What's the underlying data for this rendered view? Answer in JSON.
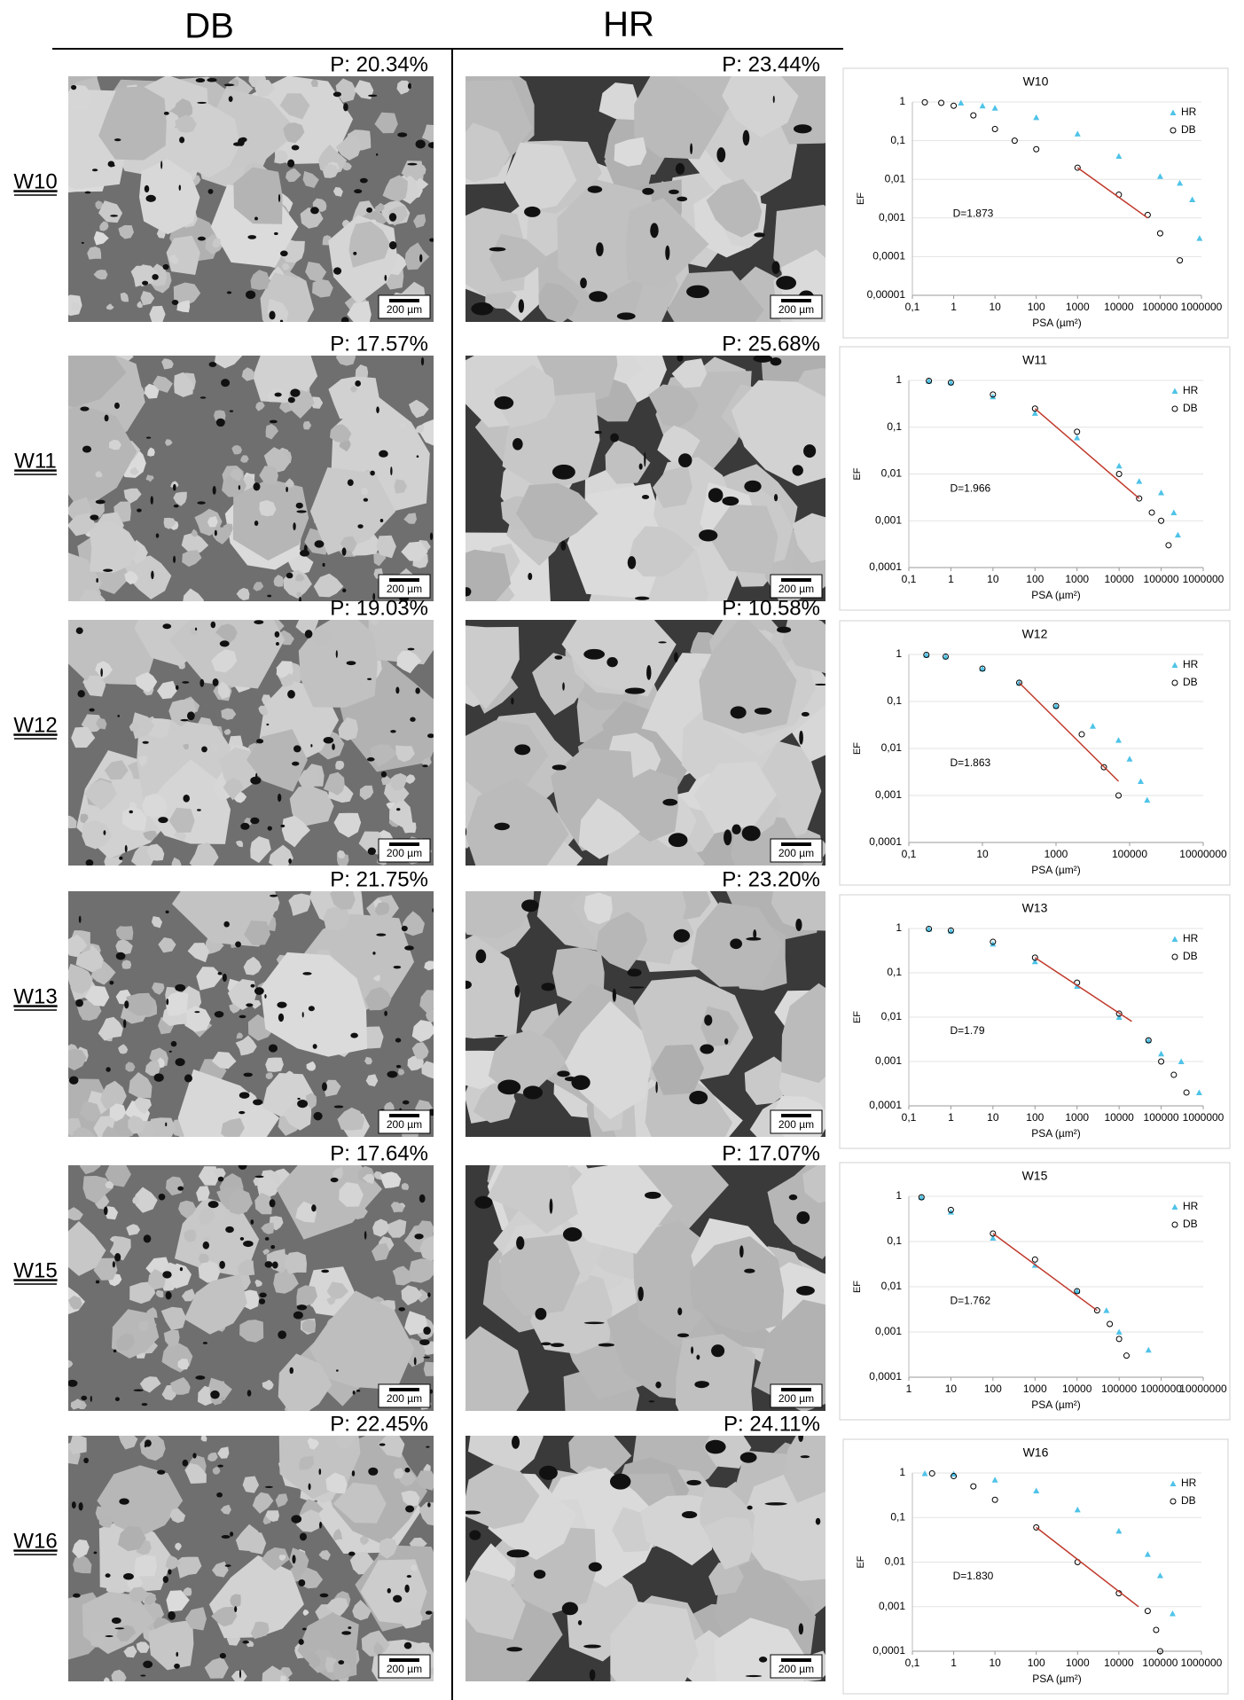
{
  "header": {
    "columns": [
      "DB",
      "HR"
    ]
  },
  "scale_bar": "200 µm",
  "rows": [
    {
      "label": "W10",
      "db": "P:  20.34%",
      "hr": "P: 23.44%"
    },
    {
      "label": "W11",
      "db": "P: 17.57%",
      "hr": "P: 25.68%"
    },
    {
      "label": "W12",
      "db": "P: 19.03%",
      "hr": "P: 10.58%"
    },
    {
      "label": "W13",
      "db": "P: 21.75%",
      "hr": "P: 23.20%"
    },
    {
      "label": "W15",
      "db": "P: 17.64%",
      "hr": "P: 17.07%"
    },
    {
      "label": "W16",
      "db": "P: 22.45%",
      "hr": "P: 24.11%"
    }
  ],
  "chart_data": [
    {
      "type": "scatter",
      "title": "W10",
      "xlabel": "PSA (µm²)",
      "ylabel": "EF",
      "xscale": "log",
      "yscale": "log",
      "grid": true,
      "legend": "upper right",
      "annotation": "D=1.873",
      "xlim": [
        0.1,
        1000000
      ],
      "ylim": [
        1e-05,
        1
      ],
      "xticks": [
        {
          "value": 0.1,
          "label": "0,1"
        },
        1,
        10,
        100,
        1000,
        10000,
        100000,
        1000000
      ],
      "yticks": [
        {
          "value": 1e-05,
          "label": "0,00001"
        },
        {
          "value": 0.0001,
          "label": "0,0001"
        },
        {
          "value": 0.001,
          "label": "0,001"
        },
        {
          "value": 0.01,
          "label": "0,01"
        },
        {
          "value": 0.1,
          "label": "0,1"
        },
        1
      ],
      "series": [
        {
          "name": "HR",
          "color": "#4fc3e8",
          "marker": "triangle",
          "x": [
            1.5,
            5,
            10,
            100,
            1000,
            10000,
            100000,
            300000,
            600000,
            900000
          ],
          "values": [
            0.95,
            0.8,
            0.7,
            0.4,
            0.15,
            0.04,
            0.012,
            0.008,
            0.003,
            0.0003
          ]
        },
        {
          "name": "DB",
          "color": "#000000",
          "marker": "circle",
          "x": [
            0.2,
            0.5,
            1,
            3,
            10,
            30,
            100,
            1000,
            10000,
            50000,
            100000,
            300000
          ],
          "values": [
            0.98,
            0.95,
            0.8,
            0.45,
            0.2,
            0.1,
            0.06,
            0.02,
            0.004,
            0.0012,
            0.0004,
            8e-05
          ]
        }
      ],
      "fit": {
        "color": "#c0392b",
        "x": [
          1000,
          50000
        ],
        "values": [
          0.02,
          0.001
        ]
      }
    },
    {
      "type": "scatter",
      "title": "W11",
      "xlabel": "PSA (µm²)",
      "ylabel": "EF",
      "xscale": "log",
      "yscale": "log",
      "grid": true,
      "legend": "upper right",
      "annotation": "D=1.966",
      "xlim": [
        0.1,
        1000000
      ],
      "ylim": [
        0.0001,
        1
      ],
      "xticks": [
        {
          "value": 0.1,
          "label": "0,1"
        },
        1,
        10,
        100,
        1000,
        10000,
        100000,
        1000000
      ],
      "yticks": [
        {
          "value": 0.0001,
          "label": "0,0001"
        },
        {
          "value": 0.001,
          "label": "0,001"
        },
        {
          "value": 0.01,
          "label": "0,01"
        },
        {
          "value": 0.1,
          "label": "0,1"
        },
        1
      ],
      "series": [
        {
          "name": "HR",
          "color": "#4fc3e8",
          "marker": "triangle",
          "x": [
            0.3,
            1,
            10,
            100,
            1000,
            10000,
            30000,
            100000,
            200000,
            250000
          ],
          "values": [
            0.98,
            0.9,
            0.45,
            0.2,
            0.06,
            0.015,
            0.007,
            0.004,
            0.0015,
            0.0005
          ]
        },
        {
          "name": "DB",
          "color": "#000000",
          "marker": "circle",
          "x": [
            0.3,
            1,
            10,
            100,
            1000,
            10000,
            30000,
            60000,
            100000,
            150000
          ],
          "values": [
            0.98,
            0.9,
            0.5,
            0.25,
            0.08,
            0.01,
            0.003,
            0.0015,
            0.001,
            0.0003
          ]
        }
      ],
      "fit": {
        "color": "#c0392b",
        "x": [
          100,
          30000
        ],
        "values": [
          0.25,
          0.003
        ]
      }
    },
    {
      "type": "scatter",
      "title": "W12",
      "xlabel": "PSA (µm²)",
      "ylabel": "EF",
      "xscale": "log",
      "yscale": "log",
      "grid": true,
      "legend": "upper right",
      "annotation": "D=1.863",
      "xlim": [
        0.1,
        10000000
      ],
      "ylim": [
        0.0001,
        1
      ],
      "xticks": [
        {
          "value": 0.1,
          "label": "0,1"
        },
        10,
        1000,
        100000,
        10000000
      ],
      "yticks": [
        {
          "value": 0.0001,
          "label": "0,0001"
        },
        {
          "value": 0.001,
          "label": "0,001"
        },
        {
          "value": 0.01,
          "label": "0,01"
        },
        {
          "value": 0.1,
          "label": "0,1"
        },
        1
      ],
      "series": [
        {
          "name": "HR",
          "color": "#4fc3e8",
          "marker": "triangle",
          "x": [
            0.3,
            1,
            10,
            100,
            1000,
            10000,
            50000,
            100000,
            200000,
            300000
          ],
          "values": [
            0.98,
            0.9,
            0.5,
            0.25,
            0.08,
            0.03,
            0.015,
            0.006,
            0.002,
            0.0008
          ]
        },
        {
          "name": "DB",
          "color": "#000000",
          "marker": "circle",
          "x": [
            0.3,
            1,
            10,
            100,
            1000,
            5000,
            20000,
            50000
          ],
          "values": [
            0.98,
            0.9,
            0.5,
            0.25,
            0.08,
            0.02,
            0.004,
            0.001
          ]
        }
      ],
      "fit": {
        "color": "#c0392b",
        "x": [
          100,
          50000
        ],
        "values": [
          0.25,
          0.002
        ]
      }
    },
    {
      "type": "scatter",
      "title": "W13",
      "xlabel": "PSA (µm²)",
      "ylabel": "EF",
      "xscale": "log",
      "yscale": "log",
      "grid": true,
      "legend": "upper right",
      "annotation": "D=1.79",
      "xlim": [
        0.1,
        1000000
      ],
      "ylim": [
        0.0001,
        1
      ],
      "xticks": [
        {
          "value": 0.1,
          "label": "0,1"
        },
        1,
        10,
        100,
        1000,
        10000,
        100000,
        1000000
      ],
      "yticks": [
        {
          "value": 0.0001,
          "label": "0,0001"
        },
        {
          "value": 0.001,
          "label": "0,001"
        },
        {
          "value": 0.01,
          "label": "0,01"
        },
        {
          "value": 0.1,
          "label": "0,1"
        },
        1
      ],
      "series": [
        {
          "name": "HR",
          "color": "#4fc3e8",
          "marker": "triangle",
          "x": [
            0.3,
            1,
            10,
            100,
            1000,
            10000,
            50000,
            100000,
            300000,
            800000
          ],
          "values": [
            0.98,
            0.88,
            0.45,
            0.18,
            0.05,
            0.01,
            0.003,
            0.0015,
            0.001,
            0.0002
          ]
        },
        {
          "name": "DB",
          "color": "#000000",
          "marker": "circle",
          "x": [
            0.3,
            1,
            10,
            100,
            1000,
            10000,
            50000,
            100000,
            200000,
            400000
          ],
          "values": [
            0.98,
            0.9,
            0.5,
            0.22,
            0.06,
            0.012,
            0.003,
            0.001,
            0.0005,
            0.0002
          ]
        }
      ],
      "fit": {
        "color": "#c0392b",
        "x": [
          100,
          20000
        ],
        "values": [
          0.22,
          0.008
        ]
      }
    },
    {
      "type": "scatter",
      "title": "W15",
      "xlabel": "PSA (µm²)",
      "ylabel": "EF",
      "xscale": "log",
      "yscale": "log",
      "grid": true,
      "legend": "upper right",
      "annotation": "D=1.762",
      "xlim": [
        1,
        10000000
      ],
      "ylim": [
        0.0001,
        1
      ],
      "xticks": [
        1,
        10,
        100,
        1000,
        10000,
        100000,
        1000000,
        10000000
      ],
      "yticks": [
        {
          "value": 0.0001,
          "label": "0,0001"
        },
        {
          "value": 0.001,
          "label": "0,001"
        },
        {
          "value": 0.01,
          "label": "0,01"
        },
        {
          "value": 0.1,
          "label": "0,1"
        },
        1
      ],
      "series": [
        {
          "name": "HR",
          "color": "#4fc3e8",
          "marker": "triangle",
          "x": [
            2,
            10,
            100,
            1000,
            10000,
            50000,
            100000,
            500000
          ],
          "values": [
            0.95,
            0.45,
            0.12,
            0.03,
            0.008,
            0.003,
            0.001,
            0.0004
          ]
        },
        {
          "name": "DB",
          "color": "#000000",
          "marker": "circle",
          "x": [
            2,
            10,
            100,
            1000,
            10000,
            30000,
            60000,
            100000,
            150000
          ],
          "values": [
            0.95,
            0.5,
            0.15,
            0.04,
            0.008,
            0.003,
            0.0015,
            0.0007,
            0.0003
          ]
        }
      ],
      "fit": {
        "color": "#c0392b",
        "x": [
          100,
          30000
        ],
        "values": [
          0.15,
          0.003
        ]
      }
    },
    {
      "type": "scatter",
      "title": "W16",
      "xlabel": "PSA (µm²)",
      "ylabel": "EF",
      "xscale": "log",
      "yscale": "log",
      "grid": true,
      "legend": "upper right",
      "annotation": "D=1.830",
      "xlim": [
        0.1,
        1000000
      ],
      "ylim": [
        0.0001,
        1
      ],
      "xticks": [
        {
          "value": 0.1,
          "label": "0,1"
        },
        1,
        10,
        100,
        1000,
        10000,
        100000,
        1000000
      ],
      "yticks": [
        {
          "value": 0.0001,
          "label": "0,0001"
        },
        {
          "value": 0.001,
          "label": "0,001"
        },
        {
          "value": 0.01,
          "label": "0,01"
        },
        {
          "value": 0.1,
          "label": "0,1"
        },
        1
      ],
      "series": [
        {
          "name": "HR",
          "color": "#4fc3e8",
          "marker": "triangle",
          "x": [
            0.2,
            1,
            10,
            100,
            1000,
            10000,
            50000,
            100000,
            200000
          ],
          "values": [
            0.98,
            0.95,
            0.7,
            0.4,
            0.15,
            0.05,
            0.015,
            0.005,
            0.0007
          ]
        },
        {
          "name": "DB",
          "color": "#000000",
          "marker": "circle",
          "x": [
            0.3,
            1,
            3,
            10,
            100,
            1000,
            10000,
            50000,
            80000,
            100000
          ],
          "values": [
            0.98,
            0.85,
            0.5,
            0.25,
            0.06,
            0.01,
            0.002,
            0.0008,
            0.0003,
            0.0001
          ]
        }
      ],
      "fit": {
        "color": "#c0392b",
        "x": [
          100,
          30000
        ],
        "values": [
          0.06,
          0.001
        ]
      }
    }
  ]
}
